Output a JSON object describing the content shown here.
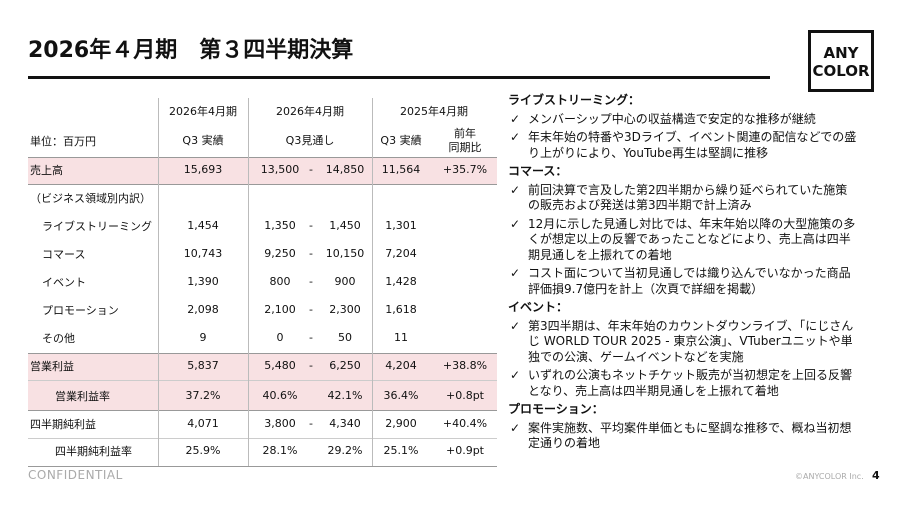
{
  "header": {
    "title": "2026年４月期　第３四半期決算",
    "logo": [
      "ANY",
      "COLOR"
    ]
  },
  "table": {
    "header_top": [
      "2026年4月期",
      "2026年4月期",
      "2025年4月期"
    ],
    "header_bottom": [
      "単位：百万円",
      "Q3 実績",
      "Q3見通し",
      "Q3 実績",
      "前年\n同期比"
    ],
    "rows": [
      [
        "売上高",
        "15,693",
        "13,500",
        "-",
        "14,850",
        "11,564",
        "+35.7%"
      ],
      [
        "（ビジネス領域別内訳）",
        null,
        null,
        null,
        null,
        null,
        null
      ],
      [
        "ライブストリーミング",
        "1,454",
        "1,350",
        "-",
        "1,450",
        "1,301",
        null
      ],
      [
        "コマース",
        "10,743",
        "9,250",
        "-",
        "10,150",
        "7,204",
        null
      ],
      [
        "イベント",
        "1,390",
        "800",
        "-",
        "900",
        "1,428",
        null
      ],
      [
        "プロモーション",
        "2,098",
        "2,100",
        "-",
        "2,300",
        "1,618",
        null
      ],
      [
        "その他",
        "9",
        "0",
        "-",
        "50",
        "11",
        null
      ],
      [
        "営業利益",
        "5,837",
        "5,480",
        "-",
        "6,250",
        "4,204",
        "+38.8%"
      ],
      [
        "営業利益率",
        "37.2%",
        "40.6%",
        null,
        "42.1%",
        "36.4%",
        "+0.8pt"
      ],
      [
        "四半期純利益",
        "4,071",
        "3,800",
        "-",
        "4,340",
        "2,900",
        "+40.4%"
      ],
      [
        "四半期純利益率",
        "25.9%",
        "28.1%",
        null,
        "29.2%",
        "25.1%",
        "+0.9pt"
      ]
    ]
  },
  "sections": [
    {
      "heading": "ライブストリーミング：",
      "items": [
        "メンバーシップ中心の収益構造で安定的な推移が継続",
        "年末年始の特番や3Dライブ、イベント関連の配信などでの盛り上がりにより、YouTube再生は堅調に推移"
      ]
    },
    {
      "heading": "コマース：",
      "items": [
        "前回決算で言及した第2四半期から繰り延べられていた施策の販売および発送は第3四半期で計上済み",
        "12月に示した見通し対比では、年末年始以降の大型施策の多くが想定以上の反響であったことなどにより、売上高は四半期見通しを上振れての着地",
        "コスト面について当初見通しでは織り込んでいなかった商品評価損9.7億円を計上（次頁で詳細を掲載）"
      ]
    },
    {
      "heading": "イベント：",
      "items": [
        "第3四半期は、年末年始のカウントダウンライブ、「にじさんじ WORLD TOUR 2025 - 東京公演」、VTuberユニットや単独での公演、ゲームイベントなどを実施",
        "いずれの公演もネットチケット販売が当初想定を上回る反響となり、売上高は四半期見通しを上振れて着地"
      ]
    },
    {
      "heading": "プロモーション：",
      "items": [
        "案件実施数、平均案件単価ともに堅調な推移で、概ね当初想定通りの着地"
      ]
    }
  ],
  "footer": {
    "confidential": "CONFIDENTIAL",
    "copyright": "©ANYCOLOR Inc.",
    "page": "4"
  }
}
